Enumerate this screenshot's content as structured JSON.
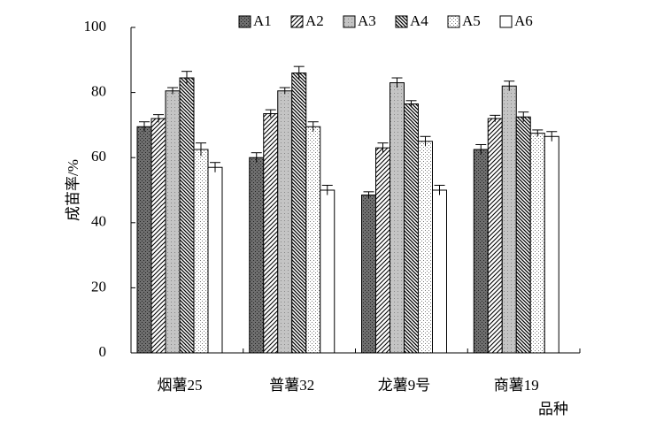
{
  "chart_data": {
    "type": "bar",
    "x_label": "品种",
    "y_label": "成苗率/%",
    "categories": [
      "烟薯25",
      "普薯32",
      "龙薯9号",
      "商薯19"
    ],
    "series": [
      {
        "name": "A1",
        "color": "#6e6e6e",
        "pattern": "dots",
        "values": [
          69.5,
          60,
          48.5,
          62.5
        ],
        "errors": [
          1.5,
          1.5,
          1,
          1.5
        ]
      },
      {
        "name": "A2",
        "color": "#ffffff",
        "pattern": "hatch",
        "values": [
          72,
          73.5,
          63,
          72
        ],
        "errors": [
          1.2,
          1.2,
          1.5,
          1
        ]
      },
      {
        "name": "A3",
        "color": "#c4c4c4",
        "pattern": "fine",
        "values": [
          80.5,
          80.5,
          83,
          82
        ],
        "errors": [
          1,
          1,
          1.5,
          1.5
        ]
      },
      {
        "name": "A4",
        "color": "#ffffff",
        "pattern": "cross",
        "values": [
          84.5,
          86,
          76.5,
          72.5
        ],
        "errors": [
          2,
          2,
          1,
          1.5
        ]
      },
      {
        "name": "A5",
        "color": "#ffffff",
        "pattern": "lightdots",
        "values": [
          62.5,
          69.5,
          65,
          67.5
        ],
        "errors": [
          2,
          1.5,
          1.5,
          1
        ]
      },
      {
        "name": "A6",
        "color": "#ffffff",
        "pattern": "none",
        "values": [
          57,
          50,
          50,
          66.5
        ],
        "errors": [
          1.5,
          1.5,
          1.5,
          1.5
        ]
      }
    ],
    "ylim": [
      0,
      100
    ],
    "yticks": [
      0,
      20,
      40,
      60,
      80,
      100
    ],
    "grid": false,
    "legend": "top"
  }
}
